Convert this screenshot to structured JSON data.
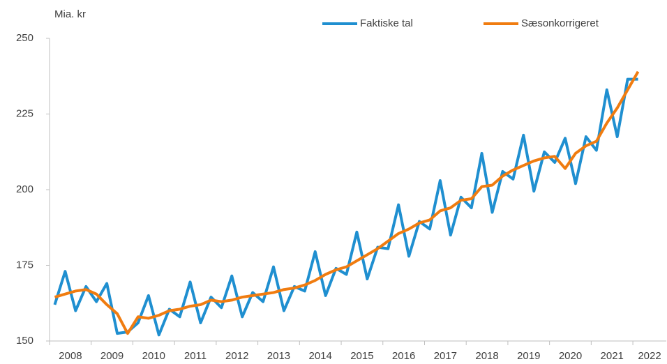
{
  "chart_data": {
    "type": "line",
    "y_axis_label": "Mia. kr",
    "categories": [
      "2008",
      null,
      null,
      null,
      "2009",
      null,
      null,
      null,
      "2010",
      null,
      null,
      null,
      "2011",
      null,
      null,
      null,
      "2012",
      null,
      null,
      null,
      "2013",
      null,
      null,
      null,
      "2014",
      null,
      null,
      null,
      "2015",
      null,
      null,
      null,
      "2016",
      null,
      null,
      null,
      "2017",
      null,
      null,
      null,
      "2018",
      null,
      null,
      null,
      "2019",
      null,
      null,
      null,
      "2020",
      null,
      null,
      null,
      "2021",
      null,
      null,
      null,
      "2022"
    ],
    "series": [
      {
        "name": "Faktiske tal",
        "color": "#1f8fd0",
        "values": [
          162,
          173,
          160,
          168,
          163,
          169,
          152.5,
          153,
          156,
          165,
          152,
          160.5,
          158,
          169.5,
          156,
          164.5,
          161,
          171.5,
          158,
          166,
          163,
          174.5,
          160,
          168,
          166.5,
          179.5,
          165,
          174,
          172,
          186,
          170.5,
          181,
          180.5,
          195,
          178,
          189.5,
          187,
          203,
          185,
          197.5,
          194,
          212,
          192.5,
          206,
          203.5,
          218,
          199.5,
          212.5,
          209,
          217,
          202,
          217.5,
          213,
          233,
          217.5,
          236.5,
          236.5
        ]
      },
      {
        "name": "Sæsonkorrigeret",
        "color": "#f07c10",
        "values": [
          164.5,
          165.5,
          166.5,
          167,
          165.5,
          162,
          159,
          152.5,
          158,
          157.5,
          158.5,
          160,
          160.5,
          161.5,
          162,
          163.5,
          163,
          163.5,
          164.5,
          165,
          165.5,
          166,
          167,
          167.5,
          168.5,
          170,
          172,
          173.5,
          174.5,
          176.5,
          178.5,
          180.5,
          183,
          185.5,
          187,
          189,
          190,
          193,
          194,
          196.5,
          197,
          201,
          201.5,
          204.5,
          206.5,
          208,
          209.5,
          210.5,
          211,
          207,
          212,
          214.5,
          216,
          222,
          227,
          233,
          239
        ]
      }
    ],
    "ylim": [
      150,
      250
    ],
    "yticks": [
      150,
      175,
      200,
      225,
      250
    ]
  }
}
